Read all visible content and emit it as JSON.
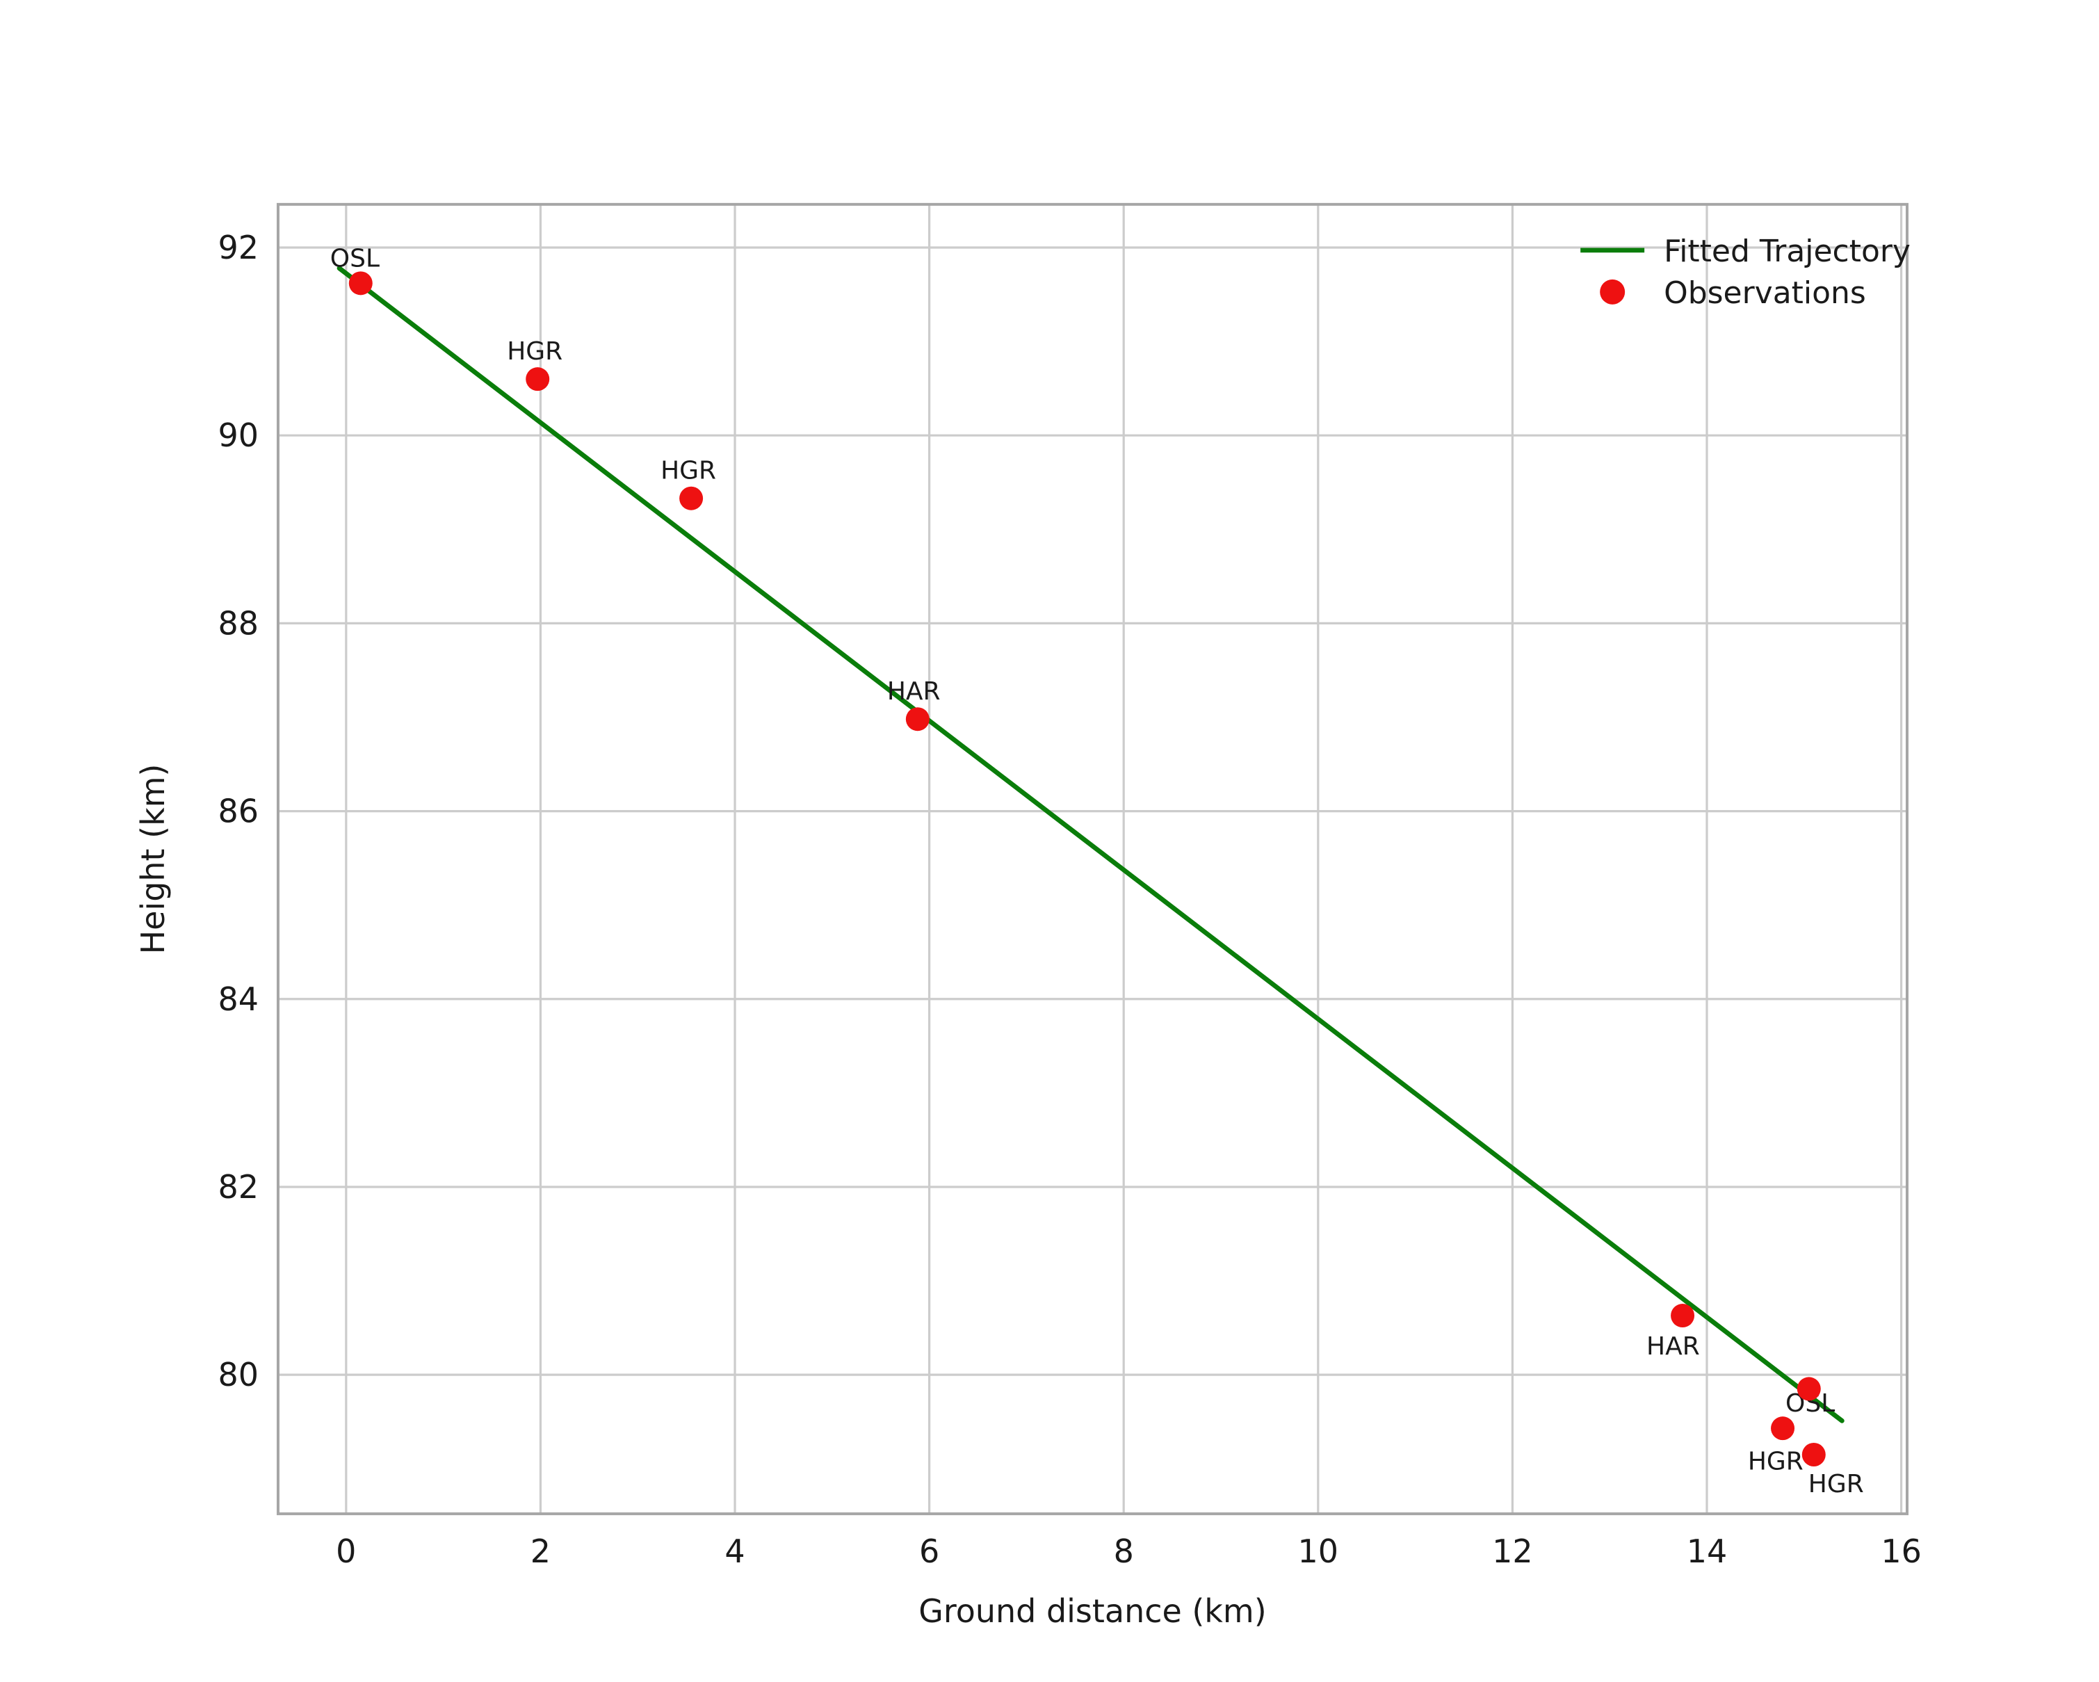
{
  "chart_data": {
    "type": "scatter",
    "title": "",
    "xlabel": "Ground distance (km)",
    "ylabel": "Height (km)",
    "xlim": [
      -0.7,
      16.06
    ],
    "ylim": [
      78.52,
      92.46
    ],
    "xticks": [
      0,
      2,
      4,
      6,
      8,
      10,
      12,
      14,
      16
    ],
    "yticks": [
      80,
      82,
      84,
      86,
      88,
      90,
      92
    ],
    "grid": true,
    "legend_position": "upper right",
    "colors": {
      "line": "#0a7d0a",
      "marker": "#ee1111",
      "grid": "#cccccc",
      "frame": "#a6a6a6",
      "text": "#1a1a1a"
    },
    "fitted_trajectory": {
      "label": "Fitted Trajectory",
      "x": [
        -0.07,
        15.39
      ],
      "y": [
        91.78,
        79.51
      ]
    },
    "observations": {
      "label": "Observations",
      "points": [
        {
          "station": "OSL",
          "x": 0.15,
          "y": 91.62,
          "label_dx": -22,
          "label_dy": -12
        },
        {
          "station": "HGR",
          "x": 1.97,
          "y": 90.6,
          "label_dx": -22,
          "label_dy": -14
        },
        {
          "station": "HGR",
          "x": 3.55,
          "y": 89.33,
          "label_dx": -22,
          "label_dy": -14
        },
        {
          "station": "HAR",
          "x": 5.88,
          "y": 86.98,
          "label_dx": -22,
          "label_dy": -14
        },
        {
          "station": "HAR",
          "x": 13.75,
          "y": 80.63,
          "label_dx": -26,
          "label_dy": 28
        },
        {
          "station": "OSL",
          "x": 14.78,
          "y": 79.43,
          "label_dx": 2,
          "label_dy": -12
        },
        {
          "station": "HGR",
          "x": 15.05,
          "y": 79.85,
          "label_dx": -44,
          "label_dy": 58
        },
        {
          "station": "HGR",
          "x": 15.1,
          "y": 79.15,
          "label_dx": -4,
          "label_dy": 27
        }
      ]
    },
    "legend": {
      "entries": [
        {
          "label": "Fitted Trajectory",
          "type": "line"
        },
        {
          "label": "Observations",
          "type": "point"
        }
      ]
    }
  }
}
